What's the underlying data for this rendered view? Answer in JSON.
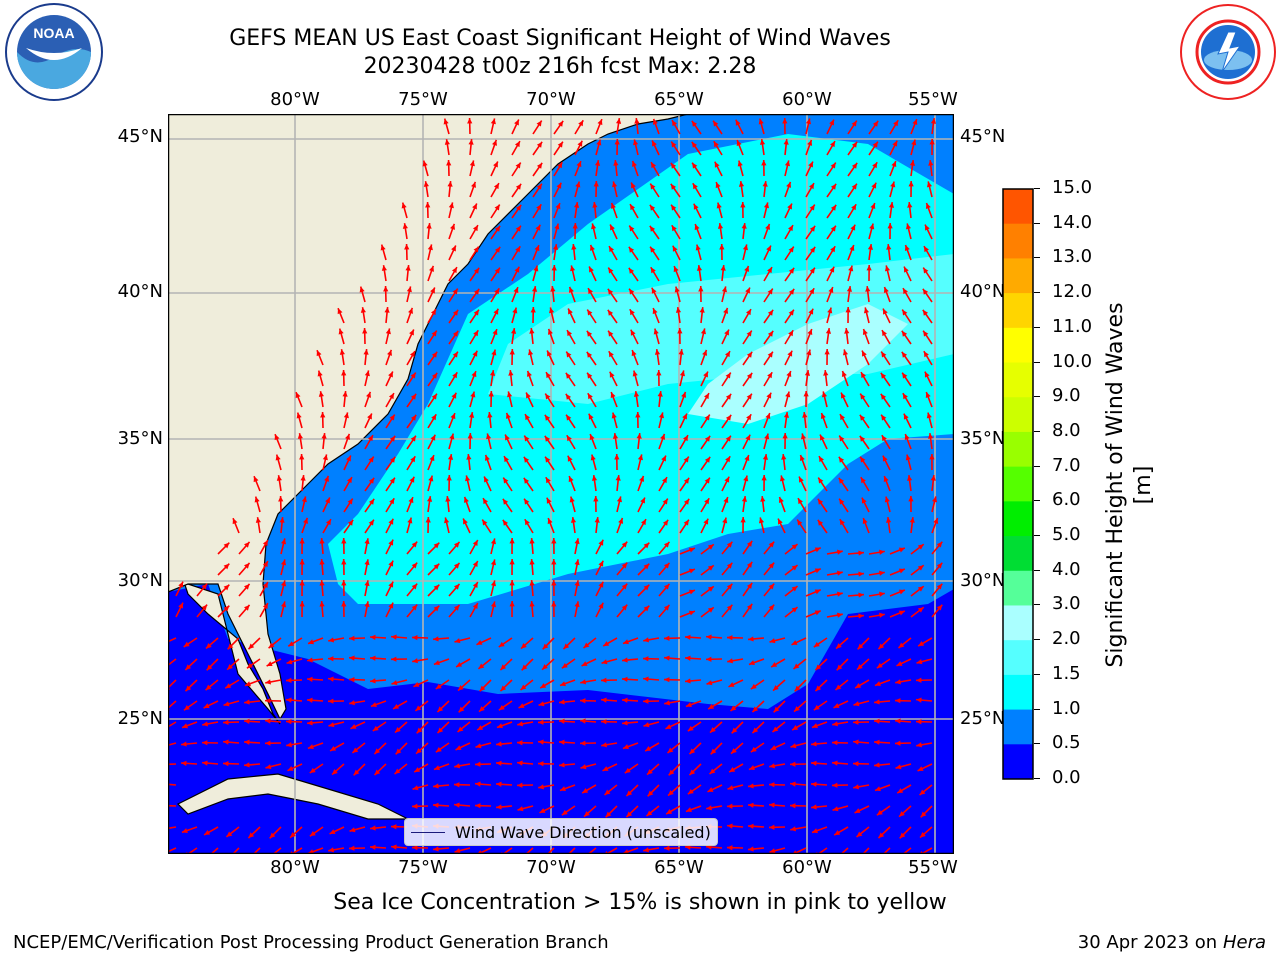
{
  "title": {
    "line1": "GEFS MEAN US East Coast Significant Height of Wind Waves",
    "line2": "20230428 t00z 216h fcst   Max: 2.28"
  },
  "map": {
    "lon_labels": [
      "80°W",
      "75°W",
      "70°W",
      "65°W",
      "60°W",
      "55°W"
    ],
    "lat_labels": [
      "45°N",
      "40°N",
      "35°N",
      "30°N",
      "25°N"
    ],
    "legend": "Wind Wave Direction (unscaled)",
    "colors": {
      "land": "#efeddb",
      "lt05": "#0000ff",
      "b05_10": "#0080ff",
      "b10_15": "#00ffff",
      "b15_20": "#55ffff",
      "b20_30": "#aaffff",
      "arrow": "#ff0000",
      "grid": "#b4b4b4"
    }
  },
  "colorbar": {
    "label": "Significant Height of Wind Waves [m]",
    "ticks": [
      "15.0",
      "14.0",
      "13.0",
      "12.0",
      "11.0",
      "10.0",
      "9.0",
      "8.0",
      "7.0",
      "6.0",
      "5.0",
      "4.0",
      "3.0",
      "2.0",
      "1.5",
      "1.0",
      "0.5",
      "0.0"
    ],
    "colors": [
      "#ff0000",
      "#ff2000",
      "#ff5500",
      "#ff8000",
      "#ffaa00",
      "#ffd500",
      "#ffff00",
      "#e6ff00",
      "#ccff00",
      "#99ff00",
      "#55ff00",
      "#00ee00",
      "#00dd33",
      "#55ff99",
      "#aaffff",
      "#55ffff",
      "#00ffff",
      "#0080ff",
      "#0000ff"
    ]
  },
  "logos": {
    "left": "NOAA",
    "left_ring": "NATIONAL OCEANIC AND ATMOSPHERIC ADMINISTRATION · U.S. DEPARTMENT OF COMMERCE",
    "right_ring": "NATIONAL WEATHER SERVICE"
  },
  "subnote": "Sea Ice Concentration > 15% is shown in pink to yellow",
  "footer": {
    "left": "NCEP/EMC/Verification Post Processing Product Generation Branch",
    "right_prefix": "30 Apr 2023 on ",
    "right_host": "Hera"
  }
}
